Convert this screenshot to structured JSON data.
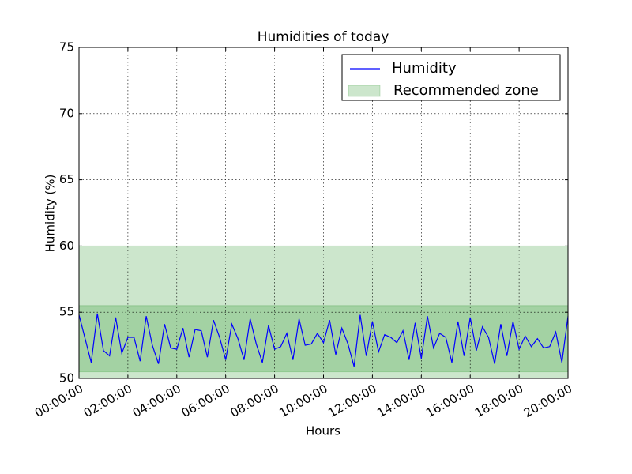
{
  "chart_data": {
    "type": "line",
    "title": "Humidities of today",
    "xlabel": "Hours",
    "ylabel": "Humidity (%)",
    "x": [
      "00:00:00",
      "00:15:00",
      "00:30:00",
      "00:45:00",
      "01:00:00",
      "01:15:00",
      "01:30:00",
      "01:45:00",
      "02:00:00",
      "02:15:00",
      "02:30:00",
      "02:45:00",
      "03:00:00",
      "03:15:00",
      "03:30:00",
      "03:45:00",
      "04:00:00",
      "04:15:00",
      "04:30:00",
      "04:45:00",
      "05:00:00",
      "05:15:00",
      "05:30:00",
      "05:45:00",
      "06:00:00",
      "06:15:00",
      "06:30:00",
      "06:45:00",
      "07:00:00",
      "07:15:00",
      "07:30:00",
      "07:45:00",
      "08:00:00",
      "08:15:00",
      "08:30:00",
      "08:45:00",
      "09:00:00",
      "09:15:00",
      "09:30:00",
      "09:45:00",
      "10:00:00",
      "10:15:00",
      "10:30:00",
      "10:45:00",
      "11:00:00",
      "11:15:00",
      "11:30:00",
      "11:45:00",
      "12:00:00",
      "12:15:00",
      "12:30:00",
      "12:45:00",
      "13:00:00",
      "13:15:00",
      "13:30:00",
      "13:45:00",
      "14:00:00",
      "14:15:00",
      "14:30:00",
      "14:45:00",
      "15:00:00",
      "15:15:00",
      "15:30:00",
      "15:45:00",
      "16:00:00",
      "16:15:00",
      "16:30:00",
      "16:45:00",
      "17:00:00",
      "17:15:00",
      "17:30:00",
      "17:45:00",
      "18:00:00",
      "18:15:00",
      "18:30:00",
      "18:45:00",
      "19:00:00",
      "19:15:00",
      "19:30:00",
      "19:45:00",
      "20:00:00"
    ],
    "series": [
      {
        "name": "Humidity",
        "color": "#0000ff",
        "values": [
          54.8,
          53.0,
          51.2,
          54.9,
          52.1,
          51.7,
          54.6,
          51.9,
          53.1,
          53.1,
          51.3,
          54.7,
          52.5,
          51.1,
          54.1,
          52.3,
          52.2,
          53.8,
          51.6,
          53.7,
          53.6,
          51.6,
          54.4,
          53.1,
          51.4,
          54.1,
          53.0,
          51.4,
          54.5,
          52.6,
          51.2,
          54.0,
          52.2,
          52.4,
          53.4,
          51.4,
          54.5,
          52.5,
          52.6,
          53.4,
          52.7,
          54.4,
          51.8,
          53.8,
          52.6,
          50.9,
          54.8,
          51.7,
          54.3,
          52.0,
          53.3,
          53.1,
          52.7,
          53.6,
          51.4,
          54.2,
          51.5,
          54.7,
          52.3,
          53.4,
          53.1,
          51.2,
          54.3,
          51.7,
          54.6,
          52.1,
          53.9,
          53.1,
          51.1,
          54.1,
          51.7,
          54.3,
          52.2,
          53.2,
          52.4,
          53.0,
          52.3,
          52.4,
          53.5,
          51.2,
          54.7
        ]
      }
    ],
    "bands": {
      "name": "Recommended zone",
      "color": "#008000",
      "opacity": 0.2,
      "ranges": [
        [
          50,
          60
        ],
        [
          50.5,
          55.5
        ]
      ]
    },
    "xlim": [
      "00:00:00",
      "20:00:00"
    ],
    "xticks": [
      "00:00:00",
      "02:00:00",
      "04:00:00",
      "06:00:00",
      "08:00:00",
      "10:00:00",
      "12:00:00",
      "14:00:00",
      "16:00:00",
      "18:00:00",
      "20:00:00"
    ],
    "ylim": [
      50,
      75
    ],
    "yticks": [
      50,
      55,
      60,
      65,
      70,
      75
    ],
    "grid": true,
    "legend": "upper right"
  }
}
